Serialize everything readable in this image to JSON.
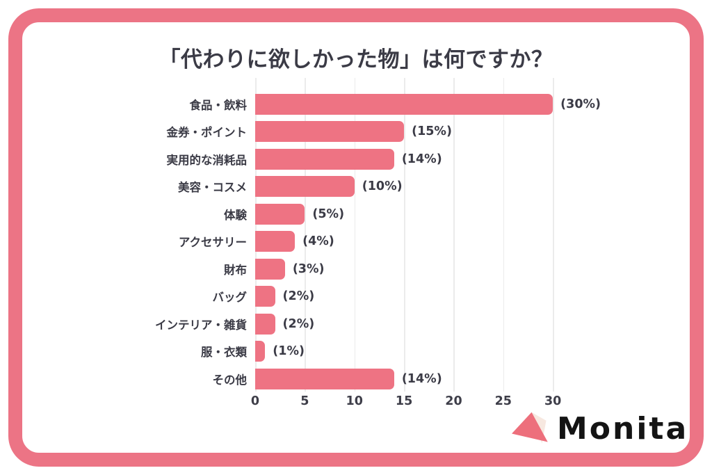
{
  "title": "「代わりに欲しかった物」は何ですか？",
  "colors": {
    "frame_border": "#ec7485",
    "bar": "#ee7383",
    "text": "#3b3b46",
    "grid": "#ebebeb",
    "logo_text": "#141414",
    "logo_triangle_main": "#ed6f7c",
    "logo_triangle_light": "#f7e8e0"
  },
  "chart_data": {
    "type": "bar",
    "orientation": "horizontal",
    "title": "「代わりに欲しかった物」は何ですか？",
    "categories": [
      "食品・飲料",
      "金券・ポイント",
      "実用的な消耗品",
      "美容・コスメ",
      "体験",
      "アクセサリー",
      "財布",
      "バッグ",
      "インテリア・雑貨",
      "服・衣類",
      "その他"
    ],
    "values": [
      30,
      15,
      14,
      10,
      5,
      4,
      3,
      2,
      2,
      1,
      14
    ],
    "value_labels": [
      "(30%)",
      "(15%)",
      "(14%)",
      "(10%)",
      "(5%)",
      "(4%)",
      "(3%)",
      "(2%)",
      "(2%)",
      "(1%)",
      "(14%)"
    ],
    "x_ticks": [
      0,
      5,
      10,
      15,
      20,
      25,
      30
    ],
    "xlim": [
      0,
      33
    ],
    "grid": true,
    "legend": "none",
    "xlabel": "",
    "ylabel": ""
  },
  "logo": {
    "text": "Monita",
    "icon": "triangle-logo-icon"
  }
}
